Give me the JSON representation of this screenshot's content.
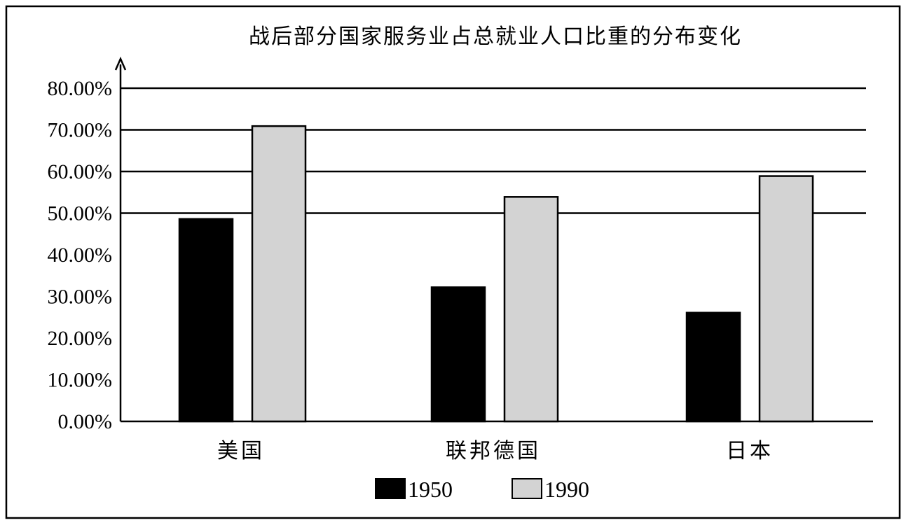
{
  "chart_data": {
    "type": "bar",
    "title": "战后部分国家服务业占总就业人口比重的分布变化",
    "categories": [
      "美国",
      "联邦德国",
      "日本"
    ],
    "series": [
      {
        "name": "1950",
        "values": [
          48.6,
          32.2,
          26.1
        ],
        "color": "#000000"
      },
      {
        "name": "1990",
        "values": [
          70.9,
          53.9,
          58.9
        ],
        "color": "#d3d3d3"
      }
    ],
    "ylim": [
      0,
      80
    ],
    "yticks": [
      0,
      10,
      20,
      30,
      40,
      50,
      60,
      70,
      80
    ],
    "ytick_labels": [
      "0.00%",
      "10.00%",
      "20.00%",
      "30.00%",
      "40.00%",
      "50.00%",
      "60.00%",
      "70.00%",
      "80.00%"
    ],
    "gridlines_at": [
      50,
      60,
      70,
      80
    ],
    "legend_position": "bottom-center",
    "xlabel": "",
    "ylabel": ""
  }
}
